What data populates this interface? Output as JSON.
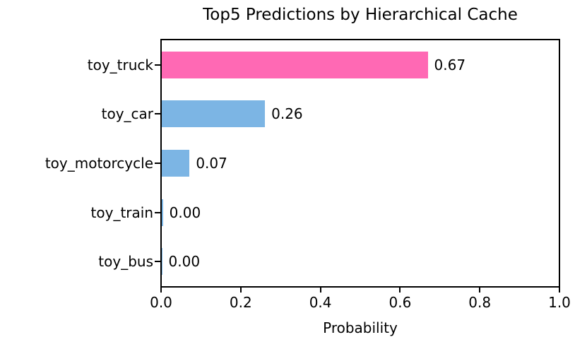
{
  "chart_data": {
    "type": "bar",
    "orientation": "horizontal",
    "title": "Top5 Predictions by Hierarchical Cache",
    "xlabel": "Probability",
    "ylabel": "",
    "categories": [
      "toy_truck",
      "toy_car",
      "toy_motorcycle",
      "toy_train",
      "toy_bus"
    ],
    "values": [
      0.67,
      0.26,
      0.07,
      0.003,
      0.001
    ],
    "value_labels": [
      "0.67",
      "0.26",
      "0.07",
      "0.00",
      "0.00"
    ],
    "bar_colors": [
      "#ff69b4",
      "#7cb5e4",
      "#7cb5e4",
      "#7cb5e4",
      "#7cb5e4"
    ],
    "highlight_color": "#ff69b4",
    "default_bar_color": "#7cb5e4",
    "xlim": [
      0.0,
      1.0
    ],
    "xticks": [
      "0.0",
      "0.2",
      "0.4",
      "0.6",
      "0.8",
      "1.0"
    ],
    "grid": false,
    "legend": null,
    "frame_color": "#000000",
    "background_color": "#ffffff"
  }
}
